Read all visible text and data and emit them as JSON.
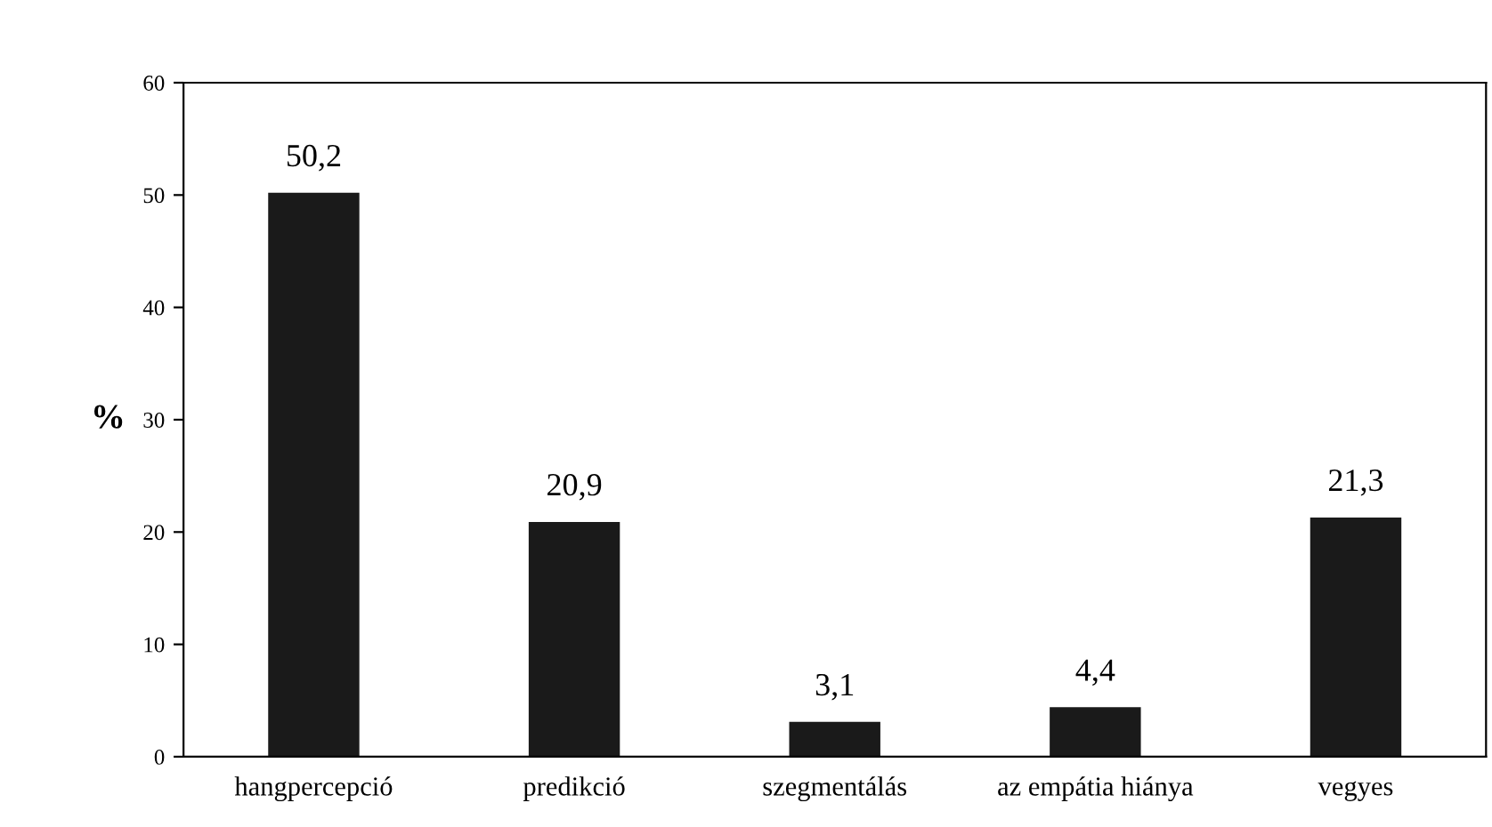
{
  "chart_data": {
    "type": "bar",
    "ylabel": "%",
    "categories": [
      "hangpercepció",
      "predikció",
      "szegmentálás",
      "az empátia hiánya",
      "vegyes"
    ],
    "values": [
      50.2,
      20.9,
      3.1,
      4.4,
      21.3
    ],
    "value_labels": [
      "50,2",
      "20,9",
      "3,1",
      "4,4",
      "21,3"
    ],
    "color": "#1a1a1a",
    "ylim": [
      0,
      60
    ],
    "yticks": [
      0,
      10,
      20,
      30,
      40,
      50,
      60
    ],
    "grid": false
  }
}
